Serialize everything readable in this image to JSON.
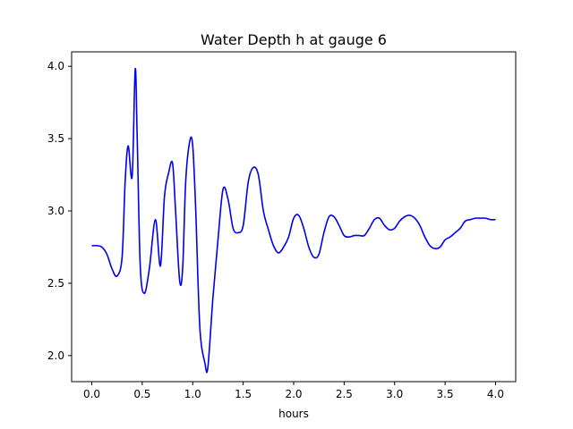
{
  "chart_data": {
    "type": "line",
    "title": "Water Depth h at gauge 6",
    "xlabel": "hours",
    "ylabel": "",
    "xlim": [
      -0.2,
      4.2
    ],
    "ylim": [
      1.82,
      4.1
    ],
    "xticks": [
      0.0,
      0.5,
      1.0,
      1.5,
      2.0,
      2.5,
      3.0,
      3.5,
      4.0
    ],
    "xtick_labels": [
      "0.0",
      "0.5",
      "1.0",
      "1.5",
      "2.0",
      "2.5",
      "3.0",
      "3.5",
      "4.0"
    ],
    "yticks": [
      2.0,
      2.5,
      3.0,
      3.5,
      4.0
    ],
    "ytick_labels": [
      "2.0",
      "2.5",
      "3.0",
      "3.5",
      "4.0"
    ],
    "grid": false,
    "series": [
      {
        "color": "#0000ee",
        "x": [
          0.0,
          0.05,
          0.1,
          0.15,
          0.2,
          0.25,
          0.3,
          0.33,
          0.36,
          0.4,
          0.43,
          0.45,
          0.48,
          0.52,
          0.57,
          0.63,
          0.68,
          0.72,
          0.76,
          0.8,
          0.83,
          0.87,
          0.9,
          0.93,
          0.97,
          1.0,
          1.03,
          1.07,
          1.12,
          1.15,
          1.2,
          1.25,
          1.3,
          1.35,
          1.4,
          1.45,
          1.5,
          1.55,
          1.6,
          1.65,
          1.7,
          1.75,
          1.8,
          1.85,
          1.9,
          1.95,
          2.0,
          2.05,
          2.1,
          2.15,
          2.2,
          2.25,
          2.3,
          2.35,
          2.4,
          2.45,
          2.5,
          2.55,
          2.6,
          2.65,
          2.7,
          2.75,
          2.8,
          2.85,
          2.9,
          2.95,
          3.0,
          3.05,
          3.1,
          3.15,
          3.2,
          3.25,
          3.3,
          3.35,
          3.4,
          3.45,
          3.5,
          3.55,
          3.6,
          3.65,
          3.7,
          3.75,
          3.8,
          3.85,
          3.9,
          3.95,
          4.0
        ],
        "values": [
          2.76,
          2.76,
          2.75,
          2.7,
          2.6,
          2.55,
          2.68,
          3.2,
          3.45,
          3.24,
          3.98,
          3.5,
          2.62,
          2.43,
          2.6,
          2.94,
          2.62,
          3.1,
          3.26,
          3.33,
          3.0,
          2.52,
          2.6,
          3.2,
          3.48,
          3.45,
          3.0,
          2.2,
          1.95,
          1.92,
          2.4,
          2.8,
          3.15,
          3.08,
          2.88,
          2.85,
          2.9,
          3.2,
          3.3,
          3.25,
          3.0,
          2.87,
          2.76,
          2.71,
          2.75,
          2.82,
          2.95,
          2.97,
          2.88,
          2.75,
          2.68,
          2.7,
          2.85,
          2.96,
          2.96,
          2.9,
          2.83,
          2.82,
          2.83,
          2.83,
          2.83,
          2.88,
          2.94,
          2.95,
          2.9,
          2.87,
          2.88,
          2.93,
          2.96,
          2.97,
          2.95,
          2.9,
          2.82,
          2.76,
          2.74,
          2.75,
          2.8,
          2.82,
          2.85,
          2.88,
          2.93,
          2.94,
          2.95,
          2.95,
          2.95,
          2.94,
          2.94
        ]
      }
    ]
  }
}
